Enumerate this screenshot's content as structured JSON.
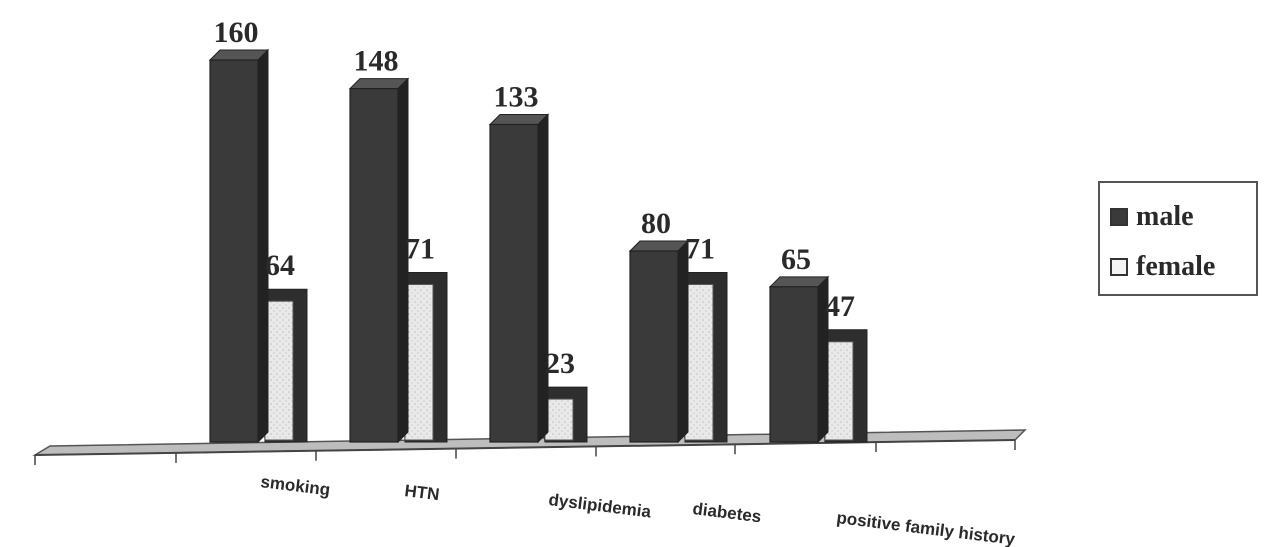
{
  "chart_data": {
    "type": "bar",
    "categories": [
      "smoking",
      "HTN",
      "dyslipidemia",
      "diabetes",
      "positive family history"
    ],
    "series": [
      {
        "name": "male",
        "values": [
          160,
          148,
          133,
          80,
          65
        ],
        "color": "#3a3a3a"
      },
      {
        "name": "female",
        "values": [
          64,
          71,
          23,
          71,
          47
        ],
        "color": "#e6e6e6"
      }
    ],
    "title": "",
    "xlabel": "",
    "ylabel": "",
    "ylim": [
      0,
      160
    ],
    "grid": false,
    "legend_position": "right",
    "three_d": true
  }
}
